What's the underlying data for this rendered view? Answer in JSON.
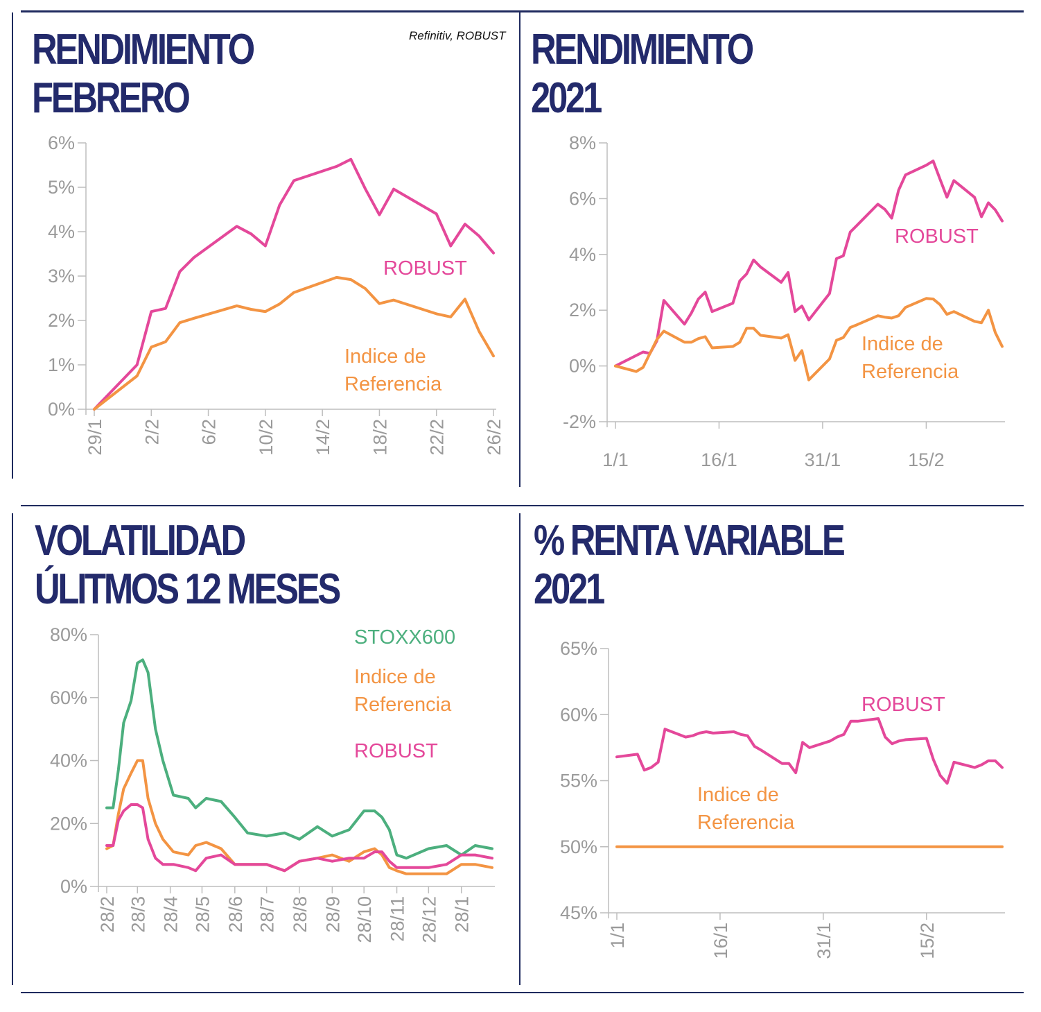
{
  "source": "Refinitiv, ROBUST",
  "panels": {
    "feb": {
      "title_line1": "RENDIMIENTO",
      "title_line2": "FEBRERO"
    },
    "y2021": {
      "title_line1": "RENDIMIENTO",
      "title_line2": "2021"
    },
    "vol": {
      "title_line1": "VOLATILIDAD",
      "title_line2": "ÚLITMOS 12 MESES"
    },
    "rv": {
      "title_line1": "% RENTA VARIABLE",
      "title_line2": "2021"
    }
  },
  "colors": {
    "robust": "#e4489a",
    "indice": "#f39443",
    "stoxx": "#4caf7e",
    "navy": "#232a6b",
    "axis": "#bdbdbd",
    "tick": "#9a9a9a"
  },
  "chart_data": [
    {
      "id": "feb",
      "type": "line",
      "title": "RENDIMIENTO FEBRERO",
      "x_ticks": [
        "29/1",
        "2/2",
        "6/2",
        "10/2",
        "14/2",
        "18/2",
        "22/2",
        "26/2"
      ],
      "xlim": [
        "29/1",
        "26/2"
      ],
      "y_ticks": [
        "0%",
        "1%",
        "2%",
        "3%",
        "4%",
        "5%",
        "6%"
      ],
      "ylim": [
        0,
        6
      ],
      "series": [
        {
          "name": "ROBUST",
          "x": [
            "29/1",
            "1/2",
            "2/2",
            "3/2",
            "4/2",
            "5/2",
            "8/2",
            "9/2",
            "10/2",
            "11/2",
            "12/2",
            "15/2",
            "16/2",
            "17/2",
            "18/2",
            "19/2",
            "22/2",
            "23/2",
            "24/2",
            "25/2",
            "26/2"
          ],
          "y": [
            0,
            1.0,
            2.2,
            2.27,
            3.1,
            3.42,
            4.12,
            3.95,
            3.68,
            4.6,
            5.15,
            5.47,
            5.63,
            4.97,
            4.38,
            4.96,
            4.4,
            3.68,
            4.17,
            3.9,
            3.52
          ]
        },
        {
          "name": "Indice de Referencia",
          "x": [
            "29/1",
            "1/2",
            "2/2",
            "3/2",
            "4/2",
            "5/2",
            "8/2",
            "9/2",
            "10/2",
            "11/2",
            "12/2",
            "15/2",
            "16/2",
            "17/2",
            "18/2",
            "19/2",
            "22/2",
            "23/2",
            "24/2",
            "25/2",
            "26/2"
          ],
          "y": [
            0,
            0.75,
            1.4,
            1.52,
            1.95,
            2.05,
            2.33,
            2.25,
            2.2,
            2.37,
            2.63,
            2.97,
            2.92,
            2.72,
            2.38,
            2.46,
            2.15,
            2.08,
            2.48,
            1.75,
            1.2
          ]
        }
      ]
    },
    {
      "id": "y2021",
      "type": "line",
      "title": "RENDIMIENTO 2021",
      "x_ticks": [
        "1/1",
        "16/1",
        "31/1",
        "15/2"
      ],
      "xlim": [
        "1/1",
        "26/2"
      ],
      "y_ticks": [
        "-2%",
        "0%",
        "2%",
        "4%",
        "6%",
        "8%"
      ],
      "ylim": [
        -2,
        8
      ],
      "series": [
        {
          "name": "ROBUST",
          "x": [
            "1/1",
            "5/1",
            "6/1",
            "7/1",
            "8/1",
            "11/1",
            "12/1",
            "13/1",
            "14/1",
            "15/1",
            "18/1",
            "19/1",
            "20/1",
            "21/1",
            "22/1",
            "25/1",
            "26/1",
            "27/1",
            "28/1",
            "29/1",
            "1/2",
            "2/2",
            "3/2",
            "4/2",
            "5/2",
            "8/2",
            "9/2",
            "10/2",
            "11/2",
            "12/2",
            "15/2",
            "16/2",
            "17/2",
            "18/2",
            "19/2",
            "22/2",
            "23/2",
            "24/2",
            "25/2",
            "26/2"
          ],
          "y": [
            0,
            0.5,
            0.45,
            0.9,
            2.35,
            1.5,
            1.9,
            2.4,
            2.65,
            1.95,
            2.25,
            3.05,
            3.3,
            3.8,
            3.55,
            3.0,
            3.35,
            1.95,
            2.15,
            1.65,
            2.6,
            3.85,
            3.95,
            4.8,
            5.05,
            5.8,
            5.62,
            5.3,
            6.3,
            6.85,
            7.2,
            7.35,
            6.7,
            6.05,
            6.65,
            6.05,
            5.35,
            5.85,
            5.6,
            5.2
          ]
        },
        {
          "name": "Indice de Referencia",
          "x": [
            "1/1",
            "4/1",
            "5/1",
            "6/1",
            "7/1",
            "8/1",
            "11/1",
            "12/1",
            "13/1",
            "14/1",
            "15/1",
            "18/1",
            "19/1",
            "20/1",
            "21/1",
            "22/1",
            "25/1",
            "26/1",
            "27/1",
            "28/1",
            "29/1",
            "1/2",
            "2/2",
            "3/2",
            "4/2",
            "5/2",
            "8/2",
            "9/2",
            "10/2",
            "11/2",
            "12/2",
            "15/2",
            "16/2",
            "17/2",
            "18/2",
            "19/2",
            "22/2",
            "23/2",
            "24/2",
            "25/2",
            "26/2"
          ],
          "y": [
            0,
            -0.2,
            -0.05,
            0.45,
            0.95,
            1.25,
            0.85,
            0.85,
            0.98,
            1.05,
            0.65,
            0.7,
            0.85,
            1.35,
            1.35,
            1.1,
            1.0,
            1.12,
            0.2,
            0.55,
            -0.5,
            0.25,
            0.92,
            1.02,
            1.38,
            1.48,
            1.8,
            1.75,
            1.72,
            1.8,
            2.1,
            2.42,
            2.4,
            2.2,
            1.85,
            1.95,
            1.6,
            1.55,
            2.0,
            1.2,
            0.7
          ]
        }
      ]
    },
    {
      "id": "vol",
      "type": "line",
      "title": "VOLATILIDAD ÚLITMOS 12 MESES",
      "x_ticks": [
        "28/2",
        "28/3",
        "28/4",
        "28/5",
        "28/6",
        "28/7",
        "28/8",
        "28/9",
        "28/10",
        "28/11",
        "28/12",
        "28/1"
      ],
      "xlim": [
        "2020-02-28",
        "2021-02-26"
      ],
      "y_ticks": [
        "0%",
        "20%",
        "40%",
        "60%",
        "80%"
      ],
      "ylim": [
        0,
        80
      ],
      "series": [
        {
          "name": "STOXX600",
          "x": [
            "2020-02-28",
            "2020-03-05",
            "2020-03-10",
            "2020-03-15",
            "2020-03-22",
            "2020-03-28",
            "2020-04-02",
            "2020-04-07",
            "2020-04-14",
            "2020-04-21",
            "2020-05-01",
            "2020-05-15",
            "2020-05-22",
            "2020-06-01",
            "2020-06-15",
            "2020-06-28",
            "2020-07-10",
            "2020-07-28",
            "2020-08-14",
            "2020-08-28",
            "2020-09-14",
            "2020-09-28",
            "2020-10-14",
            "2020-10-28",
            "2020-11-07",
            "2020-11-14",
            "2020-11-21",
            "2020-11-28",
            "2020-12-07",
            "2020-12-28",
            "2021-01-14",
            "2021-01-28",
            "2021-02-10",
            "2021-02-26"
          ],
          "y": [
            25,
            25,
            37,
            52,
            59,
            71,
            72,
            68,
            50,
            40,
            29,
            28,
            25,
            28,
            27,
            22,
            17,
            16,
            17,
            15,
            19,
            16,
            18,
            24,
            24,
            22,
            18,
            10,
            9,
            12,
            13,
            10,
            13,
            12
          ]
        },
        {
          "name": "Indice de Referencia",
          "x": [
            "2020-02-28",
            "2020-03-05",
            "2020-03-10",
            "2020-03-15",
            "2020-03-22",
            "2020-03-28",
            "2020-04-02",
            "2020-04-07",
            "2020-04-14",
            "2020-04-21",
            "2020-05-01",
            "2020-05-15",
            "2020-05-22",
            "2020-06-01",
            "2020-06-15",
            "2020-06-28",
            "2020-07-10",
            "2020-07-28",
            "2020-08-14",
            "2020-08-28",
            "2020-09-14",
            "2020-09-28",
            "2020-10-14",
            "2020-10-28",
            "2020-11-07",
            "2020-11-14",
            "2020-11-21",
            "2020-11-28",
            "2020-12-07",
            "2020-12-28",
            "2021-01-14",
            "2021-01-28",
            "2021-02-10",
            "2021-02-26"
          ],
          "y": [
            12,
            13,
            23,
            31,
            36,
            40,
            40,
            28,
            20,
            15,
            11,
            10,
            13,
            14,
            12,
            7,
            7,
            7,
            5,
            8,
            9,
            10,
            8,
            11,
            12,
            10,
            6,
            5,
            4,
            4,
            4,
            7,
            7,
            6
          ]
        },
        {
          "name": "ROBUST",
          "x": [
            "2020-02-28",
            "2020-03-05",
            "2020-03-10",
            "2020-03-15",
            "2020-03-22",
            "2020-03-28",
            "2020-04-02",
            "2020-04-07",
            "2020-04-14",
            "2020-04-21",
            "2020-05-01",
            "2020-05-15",
            "2020-05-22",
            "2020-06-01",
            "2020-06-15",
            "2020-06-28",
            "2020-07-10",
            "2020-07-28",
            "2020-08-14",
            "2020-08-28",
            "2020-09-14",
            "2020-09-28",
            "2020-10-14",
            "2020-10-28",
            "2020-11-07",
            "2020-11-14",
            "2020-11-21",
            "2020-11-28",
            "2020-12-07",
            "2020-12-28",
            "2021-01-14",
            "2021-01-28",
            "2021-02-10",
            "2021-02-26"
          ],
          "y": [
            13,
            13,
            21,
            24,
            26,
            26,
            25,
            15,
            9,
            7,
            7,
            6,
            5,
            9,
            10,
            7,
            7,
            7,
            5,
            8,
            9,
            8,
            9,
            9,
            11,
            11,
            8,
            6,
            6,
            6,
            7,
            10,
            10,
            9
          ]
        }
      ]
    },
    {
      "id": "rv",
      "type": "line",
      "title": "% RENTA VARIABLE 2021",
      "x_ticks": [
        "1/1",
        "16/1",
        "31/1",
        "15/2"
      ],
      "xlim": [
        "1/1",
        "26/2"
      ],
      "y_ticks": [
        "45%",
        "50%",
        "55%",
        "60%",
        "65%"
      ],
      "ylim": [
        45,
        65
      ],
      "series": [
        {
          "name": "ROBUST",
          "x": [
            "1/1",
            "4/1",
            "5/1",
            "6/1",
            "7/1",
            "8/1",
            "11/1",
            "12/1",
            "13/1",
            "14/1",
            "15/1",
            "18/1",
            "19/1",
            "20/1",
            "21/1",
            "22/1",
            "25/1",
            "26/1",
            "27/1",
            "28/1",
            "29/1",
            "1/2",
            "2/2",
            "3/2",
            "4/2",
            "5/2",
            "8/2",
            "9/2",
            "10/2",
            "11/2",
            "12/2",
            "15/2",
            "16/2",
            "17/2",
            "18/2",
            "19/2",
            "22/2",
            "23/2",
            "24/2",
            "25/2",
            "26/2"
          ],
          "y": [
            56.8,
            57.0,
            55.8,
            56.0,
            56.4,
            58.9,
            58.3,
            58.4,
            58.6,
            58.7,
            58.6,
            58.7,
            58.5,
            58.4,
            57.6,
            57.3,
            56.3,
            56.3,
            55.6,
            57.9,
            57.5,
            58.0,
            58.3,
            58.5,
            59.5,
            59.5,
            59.7,
            58.3,
            57.8,
            58.0,
            58.1,
            58.2,
            56.6,
            55.4,
            54.8,
            56.4,
            56.0,
            56.2,
            56.5,
            56.5,
            56.0
          ]
        },
        {
          "name": "Indice de Referencia",
          "x": [
            "1/1",
            "26/2"
          ],
          "y": [
            50,
            50
          ]
        }
      ]
    }
  ],
  "series_labels": {
    "feb": {
      "robust": "ROBUST",
      "indice_line1": "Indice de",
      "indice_line2": "Referencia"
    },
    "y2021": {
      "robust": "ROBUST",
      "indice_line1": "Indice de",
      "indice_line2": "Referencia"
    },
    "vol": {
      "stoxx": "STOXX600",
      "indice_line1": "Indice de",
      "indice_line2": "Referencia",
      "robust": "ROBUST"
    },
    "rv": {
      "robust": "ROBUST",
      "indice_line1": "Indice de",
      "indice_line2": "Referencia"
    }
  }
}
